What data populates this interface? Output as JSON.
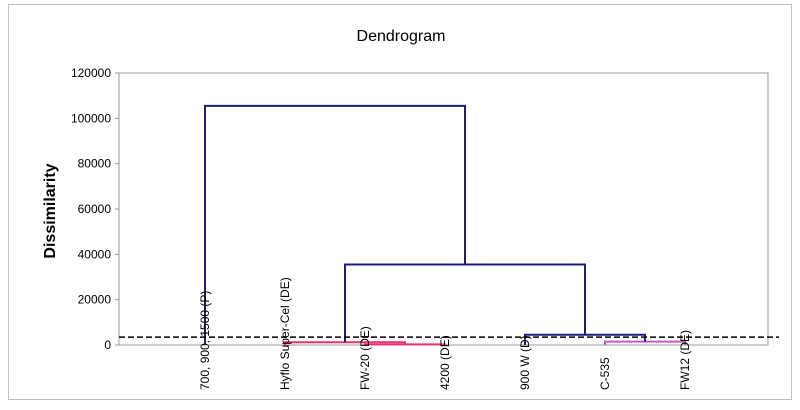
{
  "chart_data": {
    "type": "dendrogram",
    "title": "Dendrogram",
    "xlabel": "",
    "ylabel": "Dissimilarity",
    "ylim": [
      0,
      120000
    ],
    "yticks": [
      "0",
      "20000",
      "40000",
      "60000",
      "80000",
      "100000",
      "120000"
    ],
    "grid": false,
    "leaves": [
      "700, 900, 1500 (P)",
      "Hyflo Super-Cel (DE)",
      "FW-20 (DE)",
      "4200 (DE)",
      "900 W (D)",
      "C-535",
      "FW12 (DE)"
    ],
    "merges": [
      {
        "left": 2,
        "right": 3,
        "height": 300,
        "color": "#e8336e"
      },
      {
        "left": 1,
        "right": 2.5,
        "height": 1200,
        "color": "#e8336e"
      },
      {
        "left": 5,
        "right": 6,
        "height": 1500,
        "color": "#c45ac9"
      },
      {
        "left": 4,
        "right": 5.5,
        "height": 4500,
        "color": "#1f1f7a"
      },
      {
        "left": 1.75,
        "right": 4.75,
        "height": 35500,
        "color": "#1f1f7a"
      },
      {
        "left": 0,
        "right": 3.25,
        "height": 105500,
        "color": "#1f1f7a"
      }
    ],
    "truncation_line": 3500
  }
}
